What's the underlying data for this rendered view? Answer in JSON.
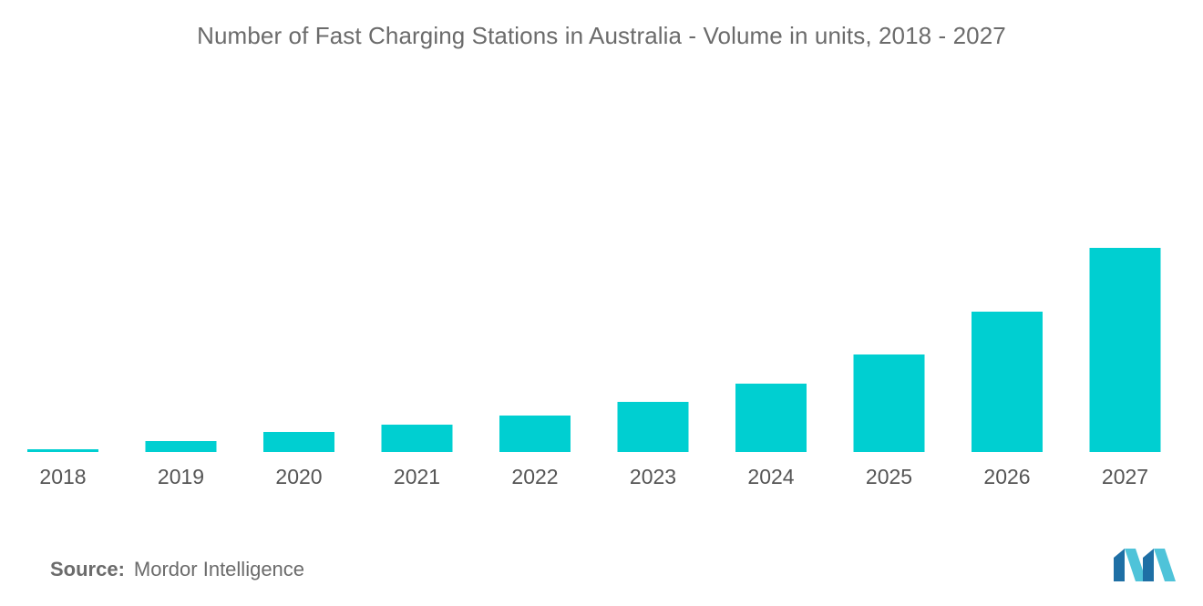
{
  "header": {
    "title": "Number of Fast Charging Stations in Australia - Volume in units, 2018 - 2027"
  },
  "chart_data": {
    "type": "bar",
    "title": "Number of Fast Charging Stations in Australia - Volume in units, 2018 - 2027",
    "xlabel": "",
    "ylabel": "",
    "categories": [
      "2018",
      "2019",
      "2020",
      "2021",
      "2022",
      "2023",
      "2024",
      "2025",
      "2026",
      "2027"
    ],
    "values": [
      3,
      12,
      22,
      30,
      40,
      55,
      75,
      107,
      154,
      224
    ],
    "ylim": [
      0,
      224
    ],
    "grid": false,
    "legend": "none",
    "bar_color": "#00cfd1"
  },
  "footer": {
    "source_label": "Source:",
    "source_value": "Mordor Intelligence"
  },
  "colors": {
    "bar": "#00cfd1",
    "text": "#6b6b6b",
    "logo_dark": "#1e6fa5",
    "logo_light": "#4fc3d9"
  },
  "logo": {
    "icon": "mordor-intelligence-logo-icon"
  }
}
